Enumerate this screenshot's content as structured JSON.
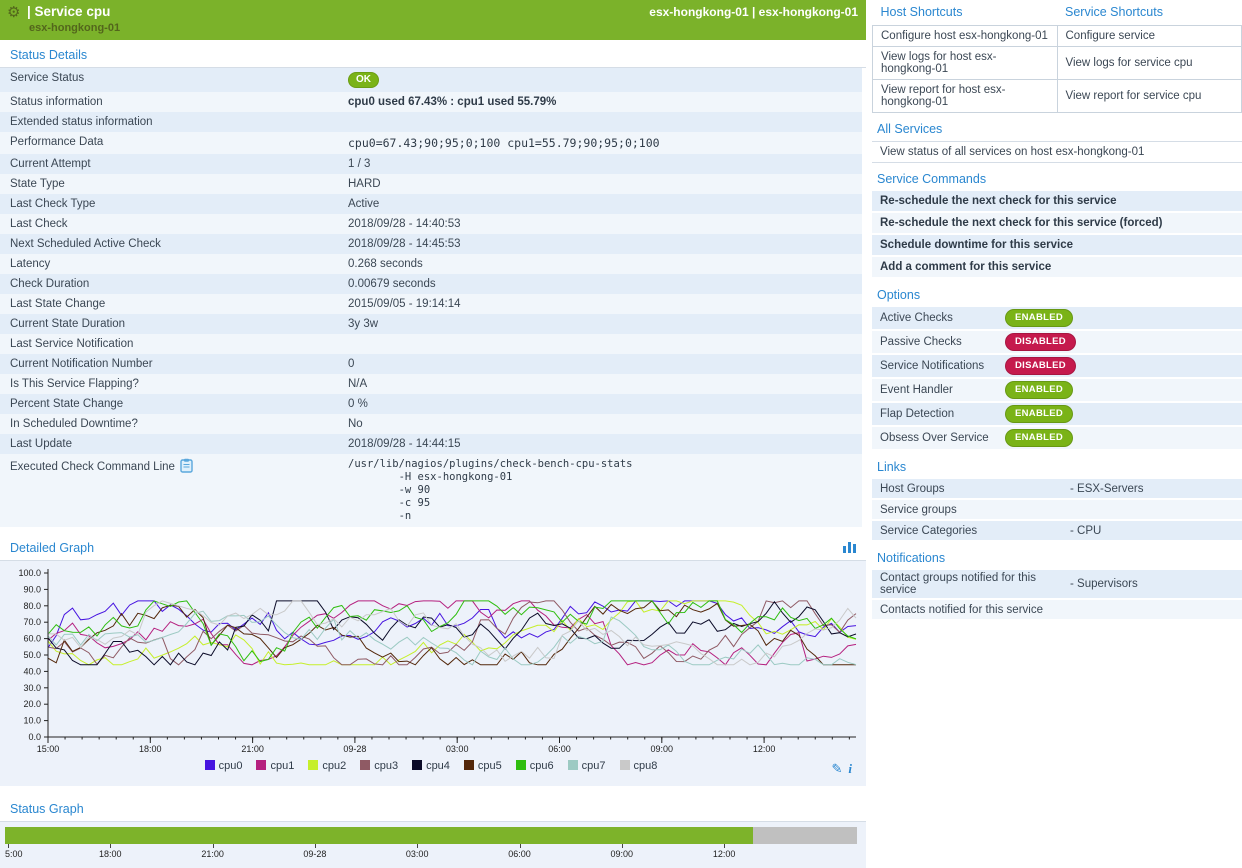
{
  "header": {
    "title": "| Service cpu",
    "subtitle": "esx-hongkong-01",
    "right_text": "esx-hongkong-01 | esx-hongkong-01"
  },
  "status_details": {
    "heading": "Status Details",
    "rows": [
      {
        "label": "Service Status",
        "badge": "OK"
      },
      {
        "label": "Status information",
        "value": "cpu0 used 67.43% : cpu1 used 55.79%",
        "bold": true
      },
      {
        "label": "Extended status information",
        "value": ""
      },
      {
        "label": "Performance Data",
        "value": "cpu0=67.43;90;95;0;100 cpu1=55.79;90;95;0;100",
        "mono": true
      },
      {
        "label": "Current Attempt",
        "value": "1 / 3"
      },
      {
        "label": "State Type",
        "value": "HARD"
      },
      {
        "label": "Last Check Type",
        "value": "Active"
      },
      {
        "label": "Last Check",
        "value": "2018/09/28 - 14:40:53"
      },
      {
        "label": "Next Scheduled Active Check",
        "value": "2018/09/28 - 14:45:53"
      },
      {
        "label": "Latency",
        "value": "0.268 seconds"
      },
      {
        "label": "Check Duration",
        "value": "0.00679 seconds"
      },
      {
        "label": "Last State Change",
        "value": "2015/09/05 - 19:14:14"
      },
      {
        "label": "Current State Duration",
        "value": "3y 3w"
      },
      {
        "label": "Last Service Notification",
        "value": ""
      },
      {
        "label": "Current Notification Number",
        "value": "0"
      },
      {
        "label": "Is This Service Flapping?",
        "value": "N/A"
      },
      {
        "label": "Percent State Change",
        "value": "0 %"
      },
      {
        "label": "In Scheduled Downtime?",
        "value": "No"
      },
      {
        "label": "Last Update",
        "value": "2018/09/28 - 14:44:15"
      },
      {
        "label": "Executed Check Command Line",
        "icon": "clipboard",
        "command": [
          "/usr/lib/nagios/plugins/check-bench-cpu-stats",
          "-H esx-hongkong-01",
          "-w 90",
          "-c 95",
          "-n"
        ]
      }
    ]
  },
  "detailed_graph": {
    "heading": "Detailed Graph"
  },
  "chart_data": {
    "type": "line",
    "title": "Detailed Graph",
    "ylabel": "",
    "xlabel": "",
    "ylim": [
      0,
      100
    ],
    "y_ticks": [
      100,
      90,
      80,
      70,
      60,
      50,
      40,
      30,
      20,
      10,
      0
    ],
    "x_ticks": [
      "15:00",
      "18:00",
      "21:00",
      "09-28",
      "03:00",
      "06:00",
      "09:00",
      "12:00"
    ],
    "grid": false,
    "legend_position": "bottom",
    "series": [
      {
        "name": "cpu0",
        "color": "#4714e0"
      },
      {
        "name": "cpu1",
        "color": "#b5207f"
      },
      {
        "name": "cpu2",
        "color": "#c6ef2b"
      },
      {
        "name": "cpu3",
        "color": "#8f5a64"
      },
      {
        "name": "cpu4",
        "color": "#0b0b28"
      },
      {
        "name": "cpu5",
        "color": "#53270a"
      },
      {
        "name": "cpu6",
        "color": "#2fbe0f"
      },
      {
        "name": "cpu7",
        "color": "#9ccac3"
      },
      {
        "name": "cpu8",
        "color": "#c9c9c9"
      }
    ],
    "values_estimated": true,
    "observed_band": [
      44,
      83
    ],
    "observed_mean": 62,
    "sample_generator": {
      "seed": 11,
      "points": 100,
      "step_jitter": 15,
      "spike_chance": 0.08,
      "min": 44,
      "max": 83
    }
  },
  "status_graph": {
    "heading": "Status Graph",
    "x_ticks": [
      "5:00",
      "18:00",
      "21:00",
      "09-28",
      "03:00",
      "06:00",
      "09:00",
      "12:00"
    ],
    "segments": [
      {
        "state": "ok",
        "color": "#7db32a",
        "fraction": 0.878
      },
      {
        "state": "no-data",
        "color": "#c0c0c0",
        "fraction": 0.122
      }
    ]
  },
  "shortcuts": {
    "host_heading": "Host Shortcuts",
    "service_heading": "Service Shortcuts",
    "rows": [
      [
        "Configure host esx-hongkong-01",
        "Configure service"
      ],
      [
        "View logs for host esx-hongkong-01",
        "View logs for service cpu"
      ],
      [
        "View report for host esx-hongkong-01",
        "View report for service cpu"
      ]
    ]
  },
  "all_services": {
    "heading": "All Services",
    "items": [
      "View status of all services on host esx-hongkong-01"
    ]
  },
  "service_commands": {
    "heading": "Service Commands",
    "items": [
      "Re-schedule the next check for this service",
      "Re-schedule the next check for this service (forced)",
      "Schedule downtime for this service",
      "Add a comment for this service"
    ]
  },
  "options": {
    "heading": "Options",
    "items": [
      {
        "label": "Active Checks",
        "state": "ENABLED"
      },
      {
        "label": "Passive Checks",
        "state": "DISABLED"
      },
      {
        "label": "Service Notifications",
        "state": "DISABLED"
      },
      {
        "label": "Event Handler",
        "state": "ENABLED"
      },
      {
        "label": "Flap Detection",
        "state": "ENABLED"
      },
      {
        "label": "Obsess Over Service",
        "state": "ENABLED"
      }
    ]
  },
  "links": {
    "heading": "Links",
    "rows": [
      {
        "label": "Host Groups",
        "value": "- ESX-Servers"
      },
      {
        "label": "Service groups",
        "value": ""
      },
      {
        "label": "Service Categories",
        "value": "- CPU"
      }
    ]
  },
  "notifications": {
    "heading": "Notifications",
    "rows": [
      {
        "label": "Contact groups notified for this service",
        "value": "- Supervisors"
      },
      {
        "label": "Contacts notified for this service",
        "value": ""
      }
    ]
  },
  "colors": {
    "topbar_green": "#7bb22a",
    "heading_blue": "#2a87d0",
    "row_alt_a": "#e3edf8",
    "row_alt_b": "#f1f6fb",
    "enabled_green": "#7ab317",
    "disabled_red": "#c51a4d",
    "graph_bg": "#edf2fa"
  }
}
